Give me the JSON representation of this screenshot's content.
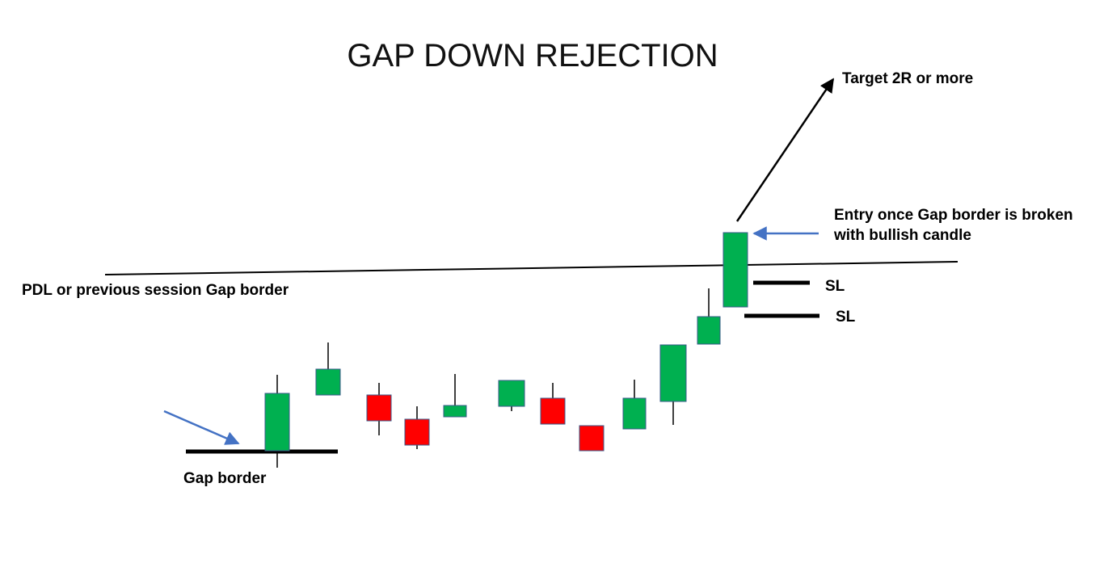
{
  "title": "GAP DOWN REJECTION",
  "labels": {
    "target": "Target 2R or more",
    "entry_line1": "Entry once Gap border is broken",
    "entry_line2": "with bullish candle",
    "pdl": "PDL or previous session Gap border",
    "gap_border": "Gap border",
    "sl_upper": "SL",
    "sl_lower": "SL"
  },
  "colors": {
    "bullish": "#00b050",
    "bearish": "#ff0000",
    "arrow_blue": "#4472c4",
    "line": "#000000"
  },
  "candles": [
    {
      "direction": "bullish"
    },
    {
      "direction": "bullish"
    },
    {
      "direction": "bearish"
    },
    {
      "direction": "bearish"
    },
    {
      "direction": "bullish"
    },
    {
      "direction": "bullish"
    },
    {
      "direction": "bearish"
    },
    {
      "direction": "bearish"
    },
    {
      "direction": "bullish"
    },
    {
      "direction": "bullish"
    },
    {
      "direction": "bullish"
    },
    {
      "direction": "bullish"
    }
  ]
}
